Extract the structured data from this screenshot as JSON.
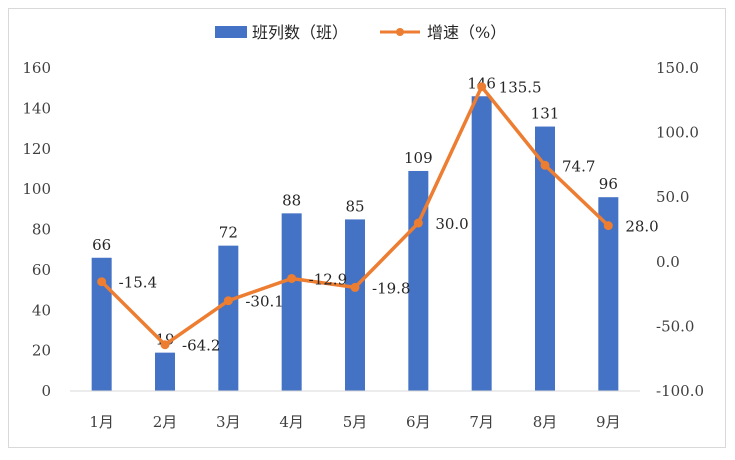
{
  "chart_data": {
    "type": "bar",
    "categories": [
      "1月",
      "2月",
      "3月",
      "4月",
      "5月",
      "6月",
      "7月",
      "8月",
      "9月"
    ],
    "series": [
      {
        "name": "班列数（班）",
        "type": "bar",
        "axis": "left",
        "color": "#4472C4",
        "values": [
          66,
          19,
          72,
          88,
          85,
          109,
          146,
          131,
          96
        ],
        "labels": [
          "66",
          "19",
          "72",
          "88",
          "85",
          "109",
          "146",
          "131",
          "96"
        ]
      },
      {
        "name": "增速（%）",
        "type": "line",
        "axis": "right",
        "color": "#ED7D31",
        "values": [
          -15.4,
          -64.2,
          -30.1,
          -12.9,
          -19.8,
          30.0,
          135.5,
          74.7,
          28.0
        ],
        "labels": [
          "-15.4",
          "-64.2",
          "-30.1",
          "-12.9",
          "-19.8",
          "30.0",
          "135.5",
          "74.7",
          "28.0"
        ]
      }
    ],
    "y_left": {
      "ylim": [
        0,
        160
      ],
      "ticks": [
        "0",
        "20",
        "40",
        "60",
        "80",
        "100",
        "120",
        "140",
        "160"
      ]
    },
    "y_right": {
      "ylim": [
        -100,
        150
      ],
      "ticks": [
        "-100.0",
        "-50.0",
        "0.0",
        "50.0",
        "100.0",
        "150.0"
      ]
    },
    "legend_position": "top-center",
    "grid": false
  }
}
